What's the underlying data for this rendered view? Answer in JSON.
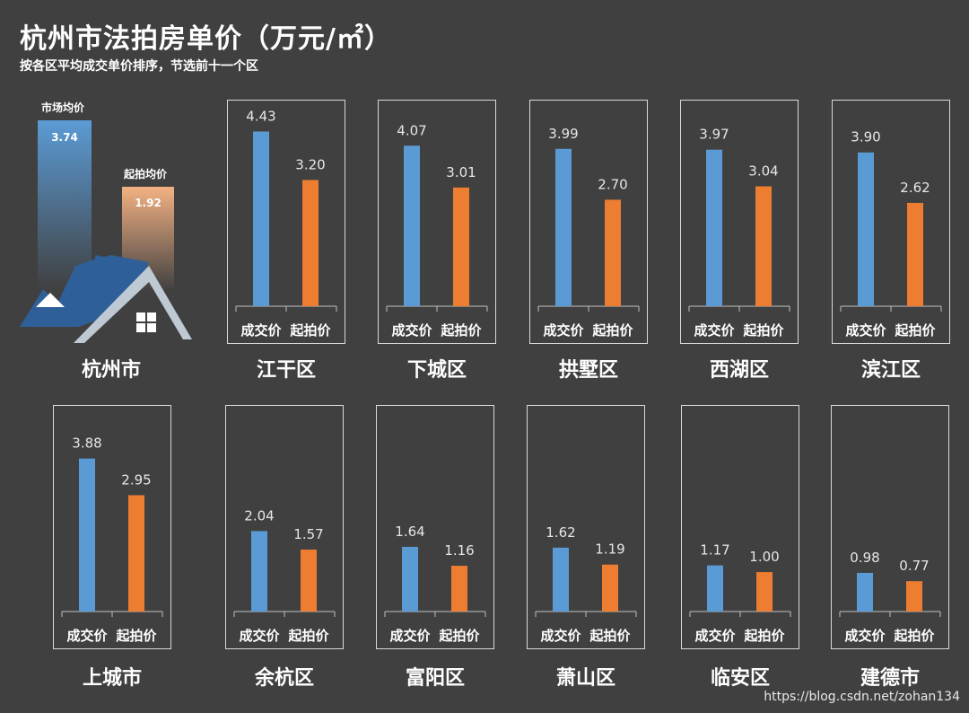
{
  "title": "杭州市法拍房单价（万元/㎡）",
  "subtitle": "按各区平均成交单价排序，节选前十一个区",
  "watermark": "https://blog.csdn.net/zohan134",
  "colors": {
    "deal": "#5B9BD5",
    "start": "#ED7D31",
    "background": "#404040",
    "frame": "#d9d9d9"
  },
  "city": {
    "name": "杭州市",
    "market_label": "市场均价",
    "market_value": "3.74",
    "start_label": "起拍均价",
    "start_value": "1.92",
    "icon": "house-icon"
  },
  "chart_data": {
    "type": "bar",
    "categories": [
      "成交价",
      "起拍价"
    ],
    "ylim": [
      0,
      4.6
    ],
    "districts": [
      {
        "name": "江干区",
        "values": [
          4.43,
          3.2
        ]
      },
      {
        "name": "下城区",
        "values": [
          4.07,
          3.01
        ]
      },
      {
        "name": "拱墅区",
        "values": [
          3.99,
          2.7
        ]
      },
      {
        "name": "西湖区",
        "values": [
          3.97,
          3.04
        ]
      },
      {
        "name": "滨江区",
        "values": [
          3.9,
          2.62
        ]
      },
      {
        "name": "上城市",
        "values": [
          3.88,
          2.95
        ]
      },
      {
        "name": "余杭区",
        "values": [
          2.04,
          1.57
        ]
      },
      {
        "name": "富阳区",
        "values": [
          1.64,
          1.16
        ]
      },
      {
        "name": "萧山区",
        "values": [
          1.62,
          1.19
        ]
      },
      {
        "name": "临安区",
        "values": [
          1.17,
          1.0
        ]
      },
      {
        "name": "建德市",
        "values": [
          0.98,
          0.77
        ]
      }
    ]
  }
}
